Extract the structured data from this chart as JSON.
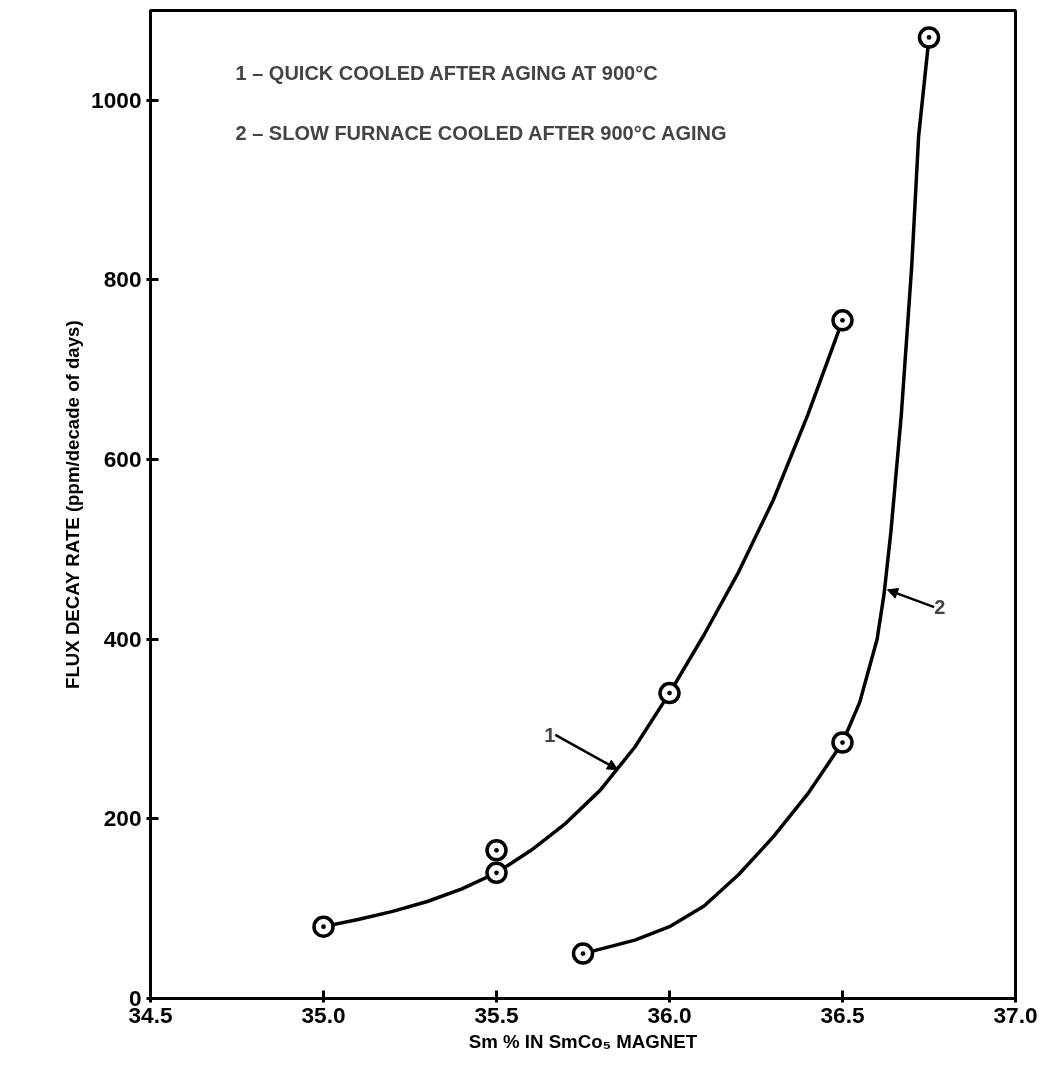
{
  "chart_data": {
    "type": "line",
    "xlabel": "Sm % IN SmCo₅ MAGNET",
    "ylabel": "FLUX DECAY RATE (ppm/decade of days)",
    "xlim": [
      34.5,
      37.0
    ],
    "xticks": [
      {
        "value": 34.5,
        "label": "34.5"
      },
      {
        "value": 35.0,
        "label": "35.0"
      },
      {
        "value": 35.5,
        "label": "35.5"
      },
      {
        "value": 36.0,
        "label": "36.0"
      },
      {
        "value": 36.5,
        "label": "36.5"
      },
      {
        "value": 37.0,
        "label": "37.0"
      }
    ],
    "ylim": [
      0,
      1100
    ],
    "yticks": [
      0,
      200,
      400,
      600,
      800,
      1000
    ],
    "series": [
      {
        "color": "#000000",
        "marker": "none",
        "x": [
          35.0,
          35.1,
          35.2,
          35.3,
          35.4,
          35.5,
          35.6,
          35.7,
          35.8,
          35.9,
          36.0,
          36.1,
          36.2,
          36.3,
          36.4,
          36.5
        ],
        "values": [
          80,
          88,
          97,
          108,
          122,
          140,
          165,
          195,
          232,
          280,
          340,
          405,
          475,
          555,
          650,
          755
        ]
      },
      {
        "color": "#000000",
        "marker": "none",
        "x": [
          35.75,
          35.9,
          36.0,
          36.1,
          36.2,
          36.3,
          36.4,
          36.5,
          36.55,
          36.6,
          36.62,
          36.64,
          36.67,
          36.7,
          36.72,
          36.75
        ],
        "values": [
          50,
          65,
          80,
          103,
          138,
          180,
          228,
          285,
          330,
          400,
          450,
          520,
          650,
          815,
          960,
          1070
        ]
      },
      {
        "type": "scatter",
        "color": "#000000",
        "x": [
          35.0,
          35.5,
          35.5,
          36.0,
          36.5,
          35.75,
          36.5,
          36.75
        ],
        "values": [
          80,
          140,
          165,
          340,
          755,
          50,
          285,
          1070
        ]
      }
    ],
    "annotations": [
      "1 – QUICK COOLED AFTER AGING AT 900°C",
      "2 – SLOW FURNACE COOLED AFTER 900°C AGING",
      {
        "text": "1",
        "x": 35.85,
        "y": 255
      },
      {
        "text": "2",
        "x": 36.63,
        "y": 455
      }
    ],
    "marker": "circle",
    "line_style": "solid",
    "grid": false
  }
}
